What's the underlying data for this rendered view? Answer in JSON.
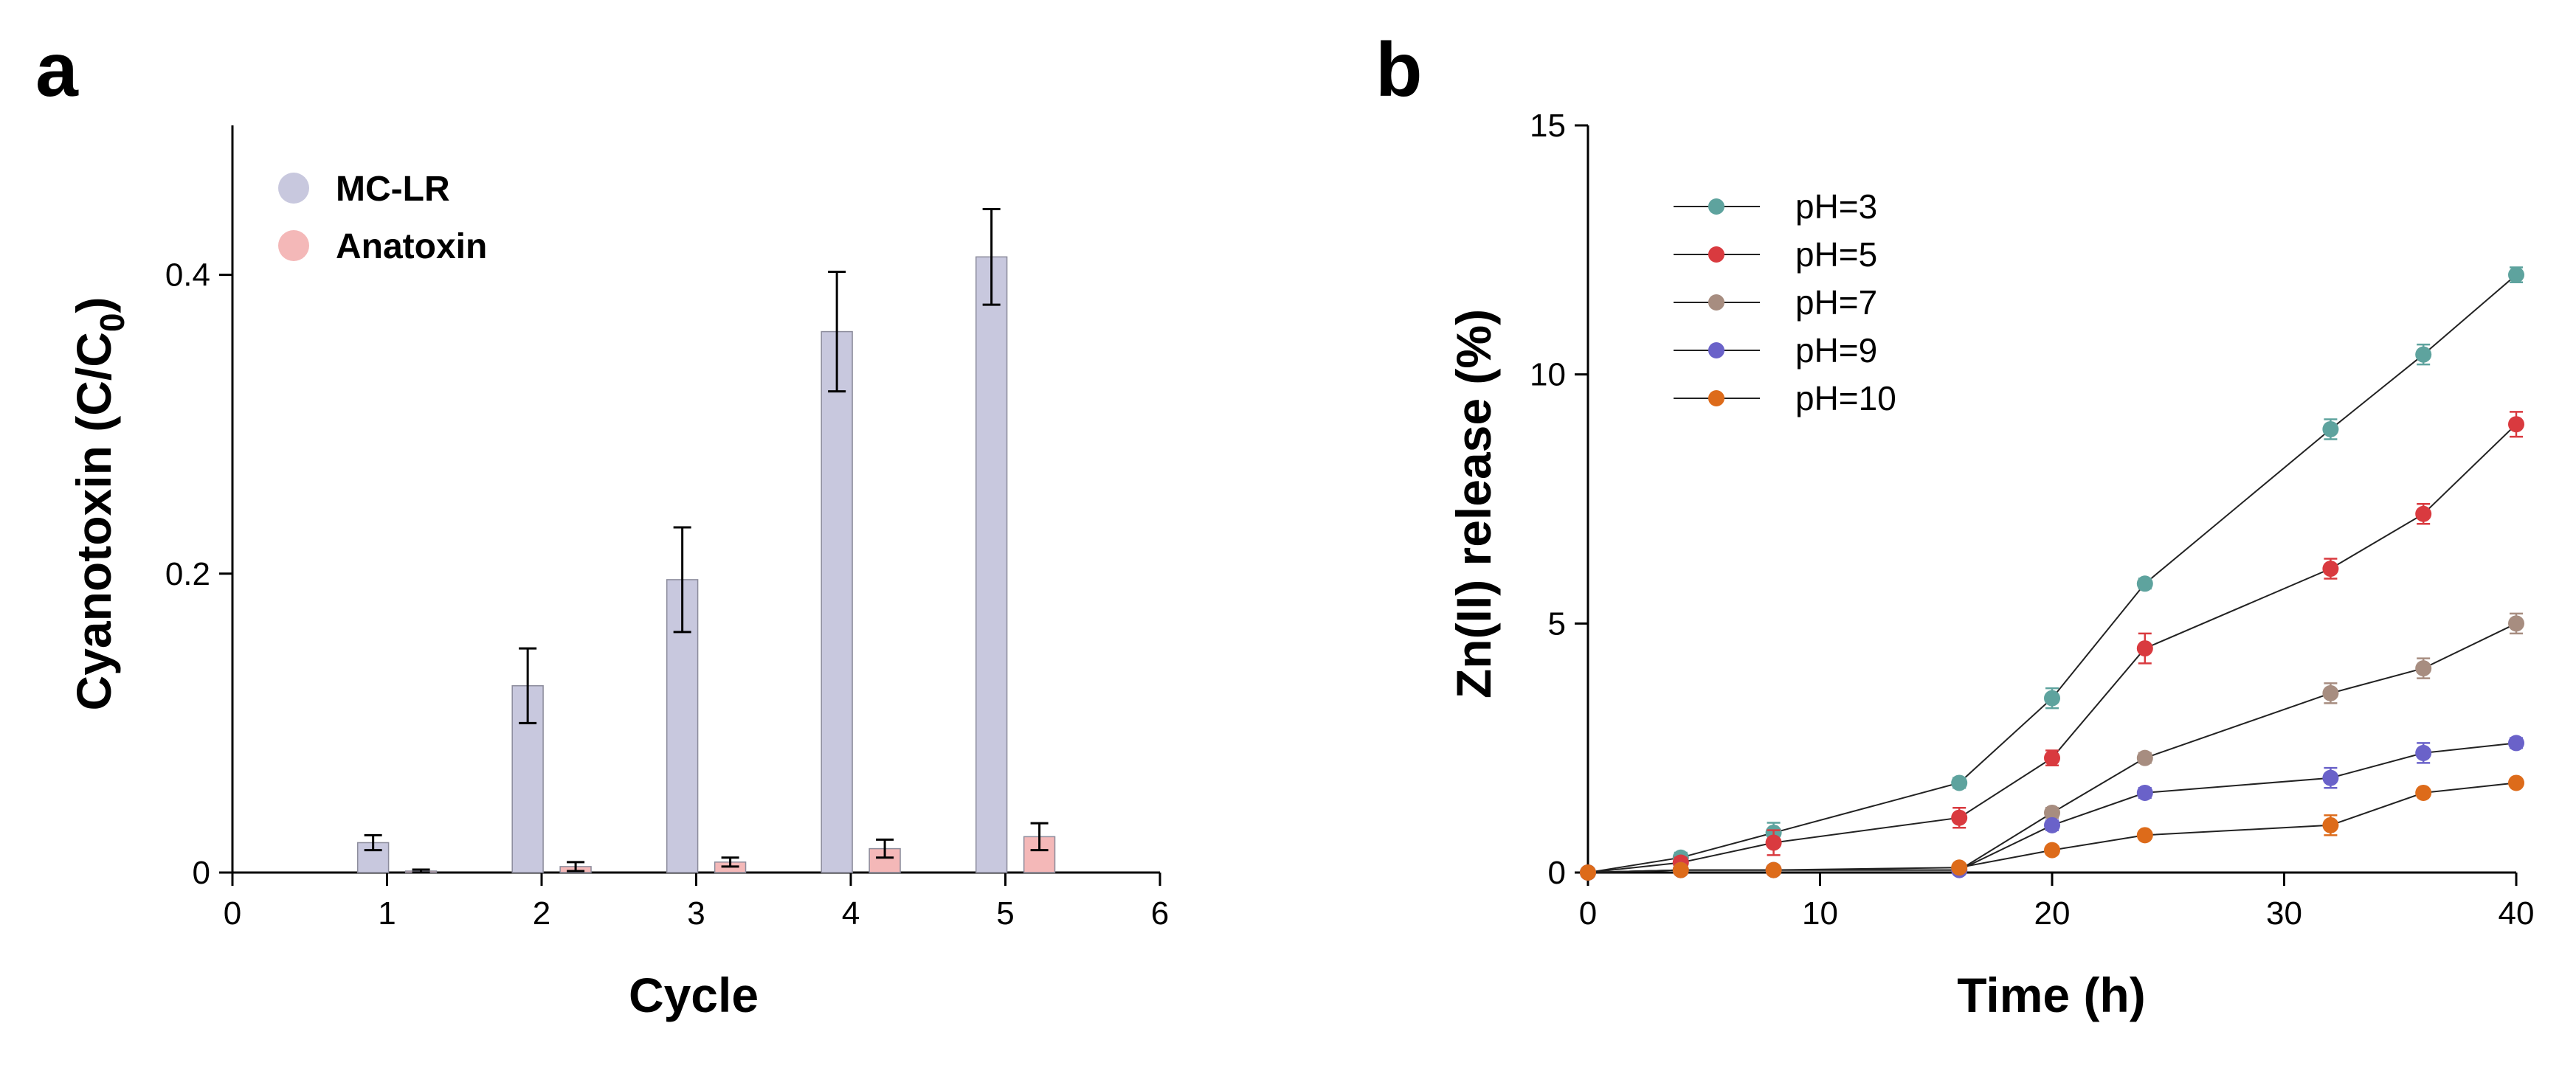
{
  "chart_data": [
    {
      "type": "bar",
      "panel_label": "a",
      "categories": [
        "1",
        "2",
        "3",
        "4",
        "5"
      ],
      "x": [
        1,
        2,
        3,
        4,
        5
      ],
      "series": [
        {
          "name": "MC-LR",
          "color": "#c8c8de",
          "values": [
            0.02,
            0.125,
            0.196,
            0.362,
            0.412
          ],
          "errors": [
            0.005,
            0.025,
            0.035,
            0.04,
            0.032
          ]
        },
        {
          "name": "Anatoxin",
          "color": "#f4b8b8",
          "values": [
            0.001,
            0.004,
            0.007,
            0.016,
            0.024
          ],
          "errors": [
            0.001,
            0.003,
            0.003,
            0.006,
            0.009
          ]
        }
      ],
      "xlabel": "Cycle",
      "ylabel": "Cyanotoxin (C/C",
      "ylabel_subscript": "0",
      "ylabel_close": ")",
      "xlim": [
        0,
        6
      ],
      "ylim": [
        0,
        0.5
      ],
      "xticks": [
        "0",
        "1",
        "2",
        "3",
        "4",
        "5",
        "6"
      ],
      "yticks": [
        "0",
        "0.2",
        "0.4"
      ],
      "legend_placement": "top-left",
      "grid": false
    },
    {
      "type": "line",
      "panel_label": "b",
      "x": [
        0,
        4,
        8,
        16,
        20,
        24,
        32,
        36,
        40
      ],
      "series": [
        {
          "name": "pH=3",
          "color": "#5ea39e",
          "values": [
            0.0,
            0.3,
            0.8,
            1.8,
            3.5,
            5.8,
            8.9,
            10.4,
            12.0
          ],
          "errors": [
            0.05,
            0.1,
            0.2,
            0.1,
            0.2,
            0.1,
            0.2,
            0.2,
            0.15
          ]
        },
        {
          "name": "pH=5",
          "color": "#d93a3f",
          "values": [
            0.0,
            0.2,
            0.6,
            1.1,
            2.3,
            4.5,
            6.1,
            7.2,
            9.0
          ],
          "errors": [
            0.05,
            0.1,
            0.25,
            0.2,
            0.15,
            0.3,
            0.2,
            0.2,
            0.25
          ]
        },
        {
          "name": "pH=7",
          "color": "#a78d80",
          "values": [
            0.0,
            0.05,
            0.05,
            0.05,
            1.2,
            2.3,
            3.6,
            4.1,
            5.0
          ],
          "errors": [
            0.02,
            0.03,
            0.03,
            0.03,
            0.1,
            0.1,
            0.2,
            0.2,
            0.2
          ]
        },
        {
          "name": "pH=9",
          "color": "#6a62c9",
          "values": [
            0.0,
            0.05,
            0.05,
            0.05,
            0.95,
            1.6,
            1.9,
            2.4,
            2.6
          ],
          "errors": [
            0.02,
            0.03,
            0.03,
            0.03,
            0.1,
            0.1,
            0.2,
            0.2,
            0.1
          ]
        },
        {
          "name": "pH=10",
          "color": "#dd6b1a",
          "values": [
            0.0,
            0.05,
            0.05,
            0.1,
            0.45,
            0.75,
            0.95,
            1.6,
            1.8
          ],
          "errors": [
            0.02,
            0.03,
            0.03,
            0.05,
            0.05,
            0.05,
            0.2,
            0.05,
            0.05
          ]
        }
      ],
      "xlabel": "Time (h)",
      "ylabel": "Zn(II) release (%)",
      "xlim": [
        0,
        40
      ],
      "ylim": [
        0,
        15
      ],
      "xticks": [
        "0",
        "10",
        "20",
        "30",
        "40"
      ],
      "yticks": [
        "0",
        "5",
        "10",
        "15"
      ],
      "legend_placement": "top-left",
      "grid": false
    }
  ]
}
